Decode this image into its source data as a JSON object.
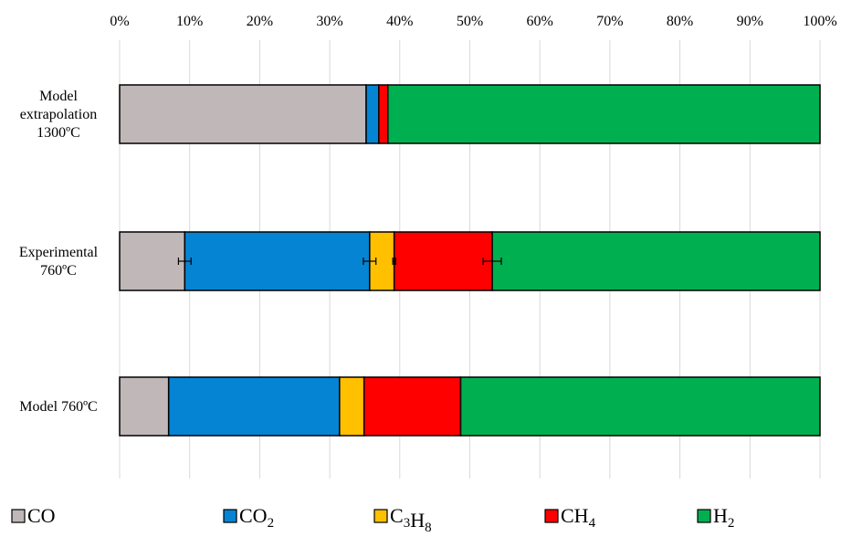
{
  "chart_data": {
    "type": "bar",
    "orientation": "horizontal",
    "stacked": true,
    "normalized": "percent",
    "xlim": [
      0,
      100
    ],
    "tick_labels": [
      "0%",
      "10%",
      "20%",
      "30%",
      "40%",
      "50%",
      "60%",
      "70%",
      "80%",
      "90%",
      "100%"
    ],
    "grid": true,
    "legend_position": "bottom",
    "categories": [
      [
        "Model",
        "extrapolation",
        "1300ºC"
      ],
      [
        "Experimental",
        "760ºC"
      ],
      [
        "Model 760ºC"
      ]
    ],
    "series": [
      {
        "name": "CO",
        "base": "CO",
        "sub": "",
        "sub2": "",
        "color": "#c0b8b8",
        "values": [
          35.2,
          9.3,
          7.0
        ]
      },
      {
        "name": "CO2",
        "base": "CO",
        "sub": "2",
        "sub2": "",
        "color": "#0584d4",
        "values": [
          1.8,
          26.4,
          24.4
        ]
      },
      {
        "name": "C3H8",
        "base": "C",
        "sub": "3",
        "sub2": "8",
        "color": "#ffc000",
        "values": [
          0.0,
          3.5,
          3.5
        ],
        "mid": "H"
      },
      {
        "name": "CH4",
        "base": "CH",
        "sub": "4",
        "sub2": "",
        "color": "#ff0000",
        "values": [
          1.3,
          14.0,
          13.8
        ]
      },
      {
        "name": "H2",
        "base": "H",
        "sub": "2",
        "sub2": "",
        "color": "#00b050",
        "values": [
          61.7,
          46.8,
          51.3
        ]
      }
    ],
    "error_bars": [
      {
        "category": 1,
        "x": 9.3,
        "minus": 0.9,
        "plus": 0.9
      },
      {
        "category": 1,
        "x": 35.7,
        "minus": 0.9,
        "plus": 0.9
      },
      {
        "category": 1,
        "x": 39.2,
        "minus": 0.2,
        "plus": 0.2
      },
      {
        "category": 1,
        "x": 53.2,
        "minus": 1.3,
        "plus": 1.3
      }
    ]
  }
}
